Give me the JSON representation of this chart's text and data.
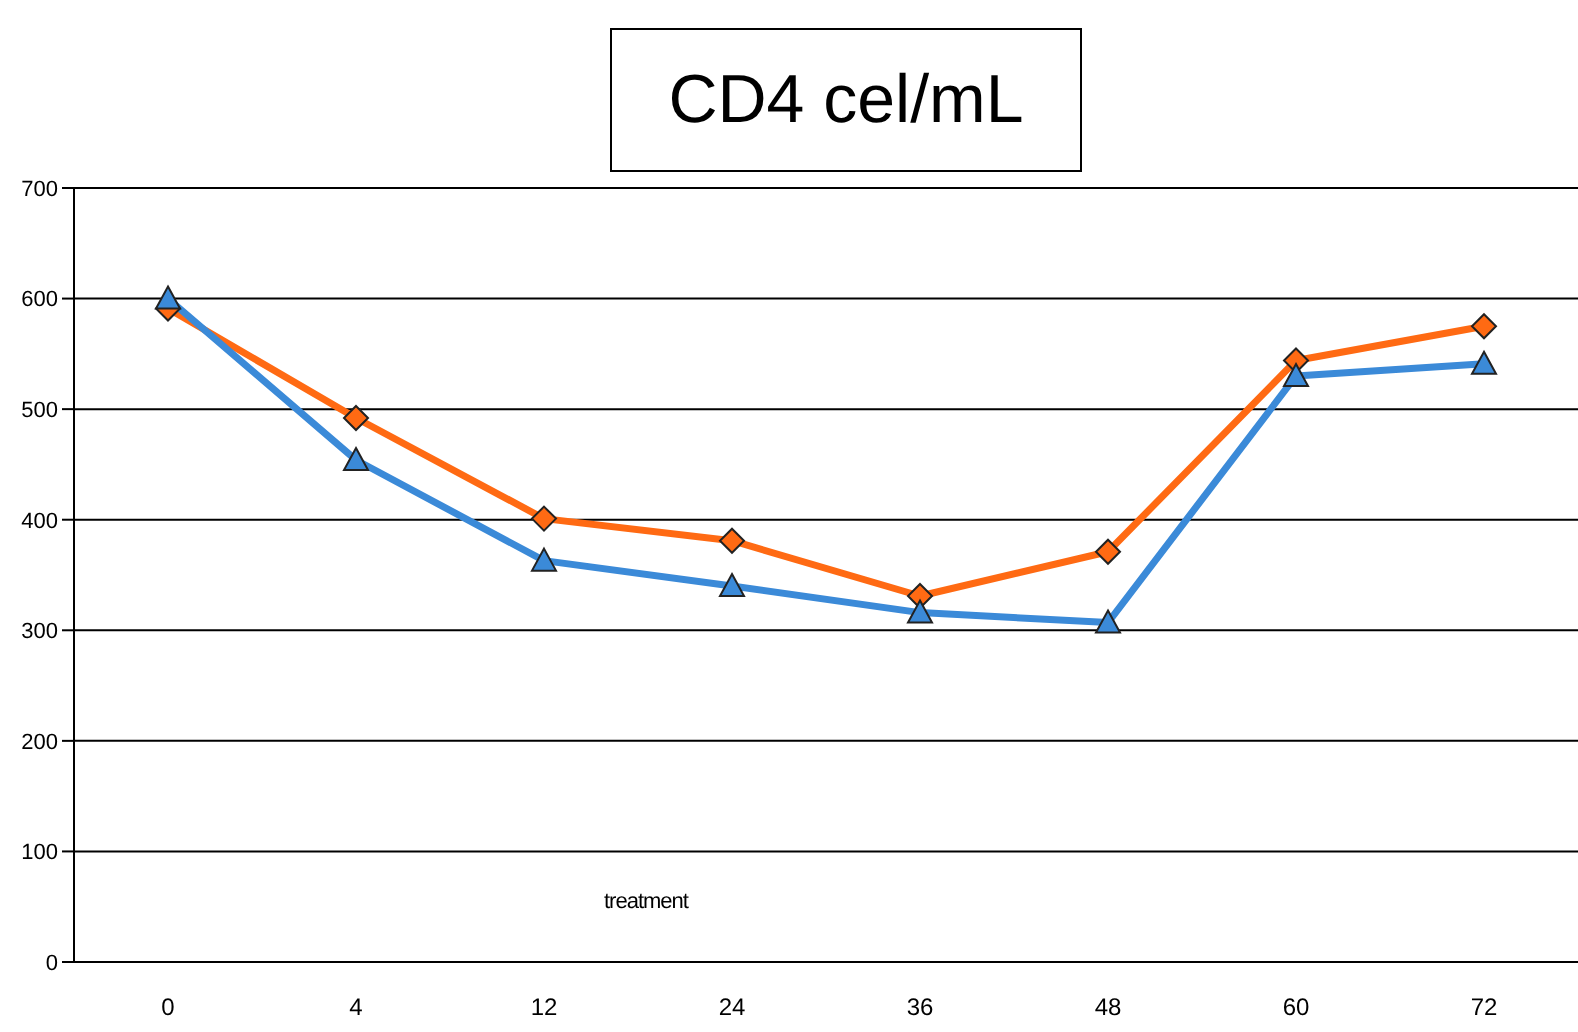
{
  "chart_data": {
    "type": "line",
    "title": "CD4 cel/mL",
    "categories": [
      "0",
      "4",
      "12",
      "24",
      "36",
      "48",
      "60",
      "72"
    ],
    "series": [
      {
        "color": "#ff6a13",
        "marker": "diamond",
        "values": [
          591,
          492,
          401,
          381,
          331,
          371,
          544,
          575
        ]
      },
      {
        "color": "#3b8ad8",
        "marker": "triangle",
        "values": [
          600,
          454,
          363,
          340,
          316,
          307,
          530,
          541
        ]
      }
    ],
    "ylim": [
      0,
      700
    ],
    "yticks": [
      0,
      100,
      200,
      300,
      400,
      500,
      600,
      700
    ],
    "grid": "y",
    "annotations": [
      "treatment"
    ]
  }
}
